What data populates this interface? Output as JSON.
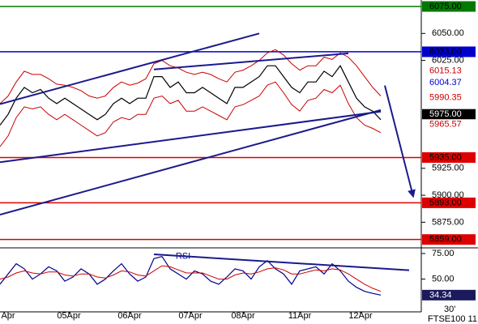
{
  "chart_data": [
    {
      "type": "line",
      "xlim": [
        0,
        104
      ],
      "ylim": [
        5852,
        6081
      ],
      "yticks": [
        {
          "value": 5875,
          "label": "5875.00"
        },
        {
          "value": 5900,
          "label": "5900.00"
        },
        {
          "value": 5925,
          "label": "5925.00"
        },
        {
          "value": 6025,
          "label": "6025.00"
        },
        {
          "value": 6050,
          "label": "6050.00"
        }
      ],
      "x": [
        0,
        2,
        4,
        6,
        8,
        10,
        12,
        14,
        16,
        18,
        20,
        22,
        24,
        26,
        28,
        30,
        32,
        34,
        36,
        38,
        40,
        42,
        44,
        46,
        48,
        50,
        52,
        54,
        56,
        58,
        60,
        62,
        64,
        66,
        68,
        70,
        72,
        74,
        76,
        78,
        80,
        82,
        84,
        86,
        88,
        90,
        92,
        94
      ],
      "series": [
        {
          "color": "#000000",
          "values": [
            5965,
            5975,
            5990,
            6000,
            5995,
            5998,
            5990,
            5985,
            5990,
            5985,
            5980,
            5975,
            5970,
            5975,
            5985,
            5990,
            5985,
            5990,
            5990,
            6010,
            6010,
            6000,
            6005,
            5995,
            5995,
            6000,
            5995,
            5990,
            5985,
            6000,
            6000,
            6005,
            6010,
            6020,
            6020,
            6010,
            6000,
            5995,
            6005,
            6005,
            6015,
            6010,
            6020,
            6005,
            5990,
            5982,
            5978,
            5970
          ]
        },
        {
          "color": "#cc0000",
          "values": [
            5985,
            5992,
            6005,
            6015,
            6012,
            6012,
            6008,
            6003,
            6002,
            6000,
            5997,
            5992,
            5990,
            5992,
            6000,
            6005,
            6002,
            6004,
            6008,
            6022,
            6025,
            6020,
            6018,
            6014,
            6012,
            6014,
            6012,
            6008,
            6005,
            6014,
            6016,
            6020,
            6025,
            6032,
            6035,
            6030,
            6022,
            6016,
            6020,
            6020,
            6028,
            6026,
            6032,
            6028,
            6020,
            6010,
            6000,
            5992
          ]
        },
        {
          "color": "#cc0000",
          "values": [
            5945,
            5955,
            5972,
            5982,
            5980,
            5982,
            5975,
            5970,
            5975,
            5970,
            5965,
            5960,
            5955,
            5958,
            5968,
            5972,
            5970,
            5975,
            5975,
            5990,
            5992,
            5985,
            5988,
            5978,
            5978,
            5982,
            5978,
            5974,
            5970,
            5982,
            5984,
            5988,
            5992,
            6002,
            6005,
            5995,
            5984,
            5978,
            5988,
            5990,
            5998,
            5995,
            6002,
            5985,
            5972,
            5965,
            5962,
            5958
          ]
        }
      ],
      "trendlines": [
        {
          "x": [
            0,
            64
          ],
          "values": [
            5984.5,
            6050
          ],
          "color": "#1a1a8c"
        },
        {
          "x": [
            0,
            94
          ],
          "values": [
            5882,
            5979
          ],
          "color": "#1a1a8c"
        },
        {
          "x": [
            0,
            94
          ],
          "values": [
            5930.6,
            5977.6
          ],
          "color": "#1a1a8c"
        },
        {
          "x": [
            38,
            86
          ],
          "values": [
            6016.6,
            6031.5
          ],
          "color": "#1a1a8c"
        },
        {
          "x": [
            95,
            102
          ],
          "values": [
            6001.7,
            5899
          ],
          "color": "#1a1a8c",
          "arrow": true
        }
      ],
      "levels": [
        {
          "value": 6075,
          "label": "6075.00",
          "color": "#007a00"
        },
        {
          "value": 6033,
          "label": "6033.00",
          "color": "#0000cc"
        },
        {
          "value": 5935,
          "label": "5935.00",
          "color": "#dd0000"
        },
        {
          "value": 5893,
          "label": "5893.00",
          "color": "#dd0000"
        },
        {
          "value": 5859,
          "label": "5859.00",
          "color": "#dd0000"
        }
      ],
      "markers": [
        {
          "value": 6015.13,
          "color": "#cc0000"
        },
        {
          "value": 6004.37,
          "color": "#0000cc"
        },
        {
          "value": 5990.35,
          "color": "#cc0000"
        },
        {
          "value": 5975,
          "label": "5975.00",
          "color": "#000000",
          "filled": true
        },
        {
          "value": 5965.57,
          "color": "#cc0000"
        }
      ]
    },
    {
      "type": "line",
      "xlim": [
        0,
        104
      ],
      "ylim": [
        18,
        80.5
      ],
      "yticks": [
        {
          "value": 50,
          "label": "50.00"
        },
        {
          "value": 75,
          "label": "75.00"
        }
      ],
      "xticks": [
        {
          "value": 2,
          "label": "Apr"
        },
        {
          "value": 17,
          "label": "05Apr"
        },
        {
          "value": 32,
          "label": "06Apr"
        },
        {
          "value": 47,
          "label": "07Apr"
        },
        {
          "value": 60,
          "label": "08Apr"
        },
        {
          "value": 74,
          "label": "11Apr"
        },
        {
          "value": 89,
          "label": "12Apr"
        }
      ],
      "x": [
        0,
        2,
        4,
        6,
        8,
        10,
        12,
        14,
        16,
        18,
        20,
        22,
        24,
        26,
        28,
        30,
        32,
        34,
        36,
        38,
        40,
        42,
        44,
        46,
        48,
        50,
        52,
        54,
        56,
        58,
        60,
        62,
        64,
        66,
        68,
        70,
        72,
        74,
        76,
        78,
        80,
        82,
        84,
        86,
        88,
        90,
        92,
        94
      ],
      "series": [
        {
          "name": "RSI",
          "color": "#00008b",
          "values": [
            45,
            55,
            65,
            60,
            50,
            55,
            62,
            58,
            48,
            52,
            60,
            55,
            45,
            50,
            58,
            65,
            55,
            48,
            52,
            70,
            72,
            60,
            55,
            50,
            58,
            55,
            48,
            45,
            52,
            60,
            58,
            50,
            62,
            68,
            60,
            55,
            45,
            58,
            60,
            62,
            55,
            65,
            58,
            48,
            42,
            38,
            36,
            34.34
          ]
        },
        {
          "color": "#cc0000",
          "values": [
            50,
            52,
            56,
            58,
            56,
            55,
            57,
            57,
            54,
            53,
            55,
            55,
            52,
            51,
            54,
            58,
            57,
            54,
            53,
            58,
            63,
            62,
            59,
            56,
            56,
            56,
            53,
            50,
            50,
            54,
            56,
            55,
            57,
            60,
            61,
            59,
            55,
            55,
            57,
            59,
            58,
            60,
            59,
            55,
            50,
            45,
            41,
            38
          ]
        }
      ],
      "trendlines": [
        {
          "x": [
            38,
            101
          ],
          "values": [
            74.2,
            58.6
          ],
          "color": "#1a1a8c"
        }
      ],
      "markers": [
        {
          "value": 34.34,
          "color": "#1a1a5c",
          "filled": true
        }
      ],
      "interval": "30'",
      "symbol": "FTSE100 11"
    }
  ]
}
